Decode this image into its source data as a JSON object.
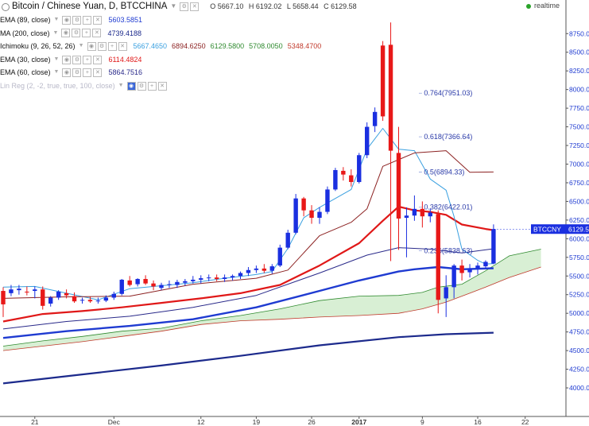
{
  "header": {
    "title": "Bitcoin / Chinese Yuan, D, BTCCHINA",
    "ohlc": {
      "open": "O 5667.10",
      "high": "H 6192.02",
      "low": "L 5658.44",
      "close": "C 6129.58"
    },
    "realtime": "realtime"
  },
  "legend": [
    {
      "name": "EMA (89, close)",
      "values": [
        "5603.5851"
      ],
      "colors": [
        "#1f3bd1"
      ]
    },
    {
      "name": "MA (200, close)",
      "values": [
        "4739.4188"
      ],
      "colors": [
        "#1c2a8c"
      ]
    },
    {
      "name": "Ichimoku (9, 26, 52, 26)",
      "values": [
        "5667.4650",
        "6894.6250",
        "6129.5800",
        "5708.0050",
        "5348.4700"
      ],
      "colors": [
        "#3aa0e0",
        "#8c2222",
        "#2f8a2f",
        "#2f8a2f",
        "#c0392b"
      ]
    },
    {
      "name": "EMA (30, close)",
      "values": [
        "6114.4824"
      ],
      "colors": [
        "#e01818"
      ]
    },
    {
      "name": "EMA (60, close)",
      "values": [
        "5864.7516"
      ],
      "colors": [
        "#2a2a8a"
      ]
    },
    {
      "name": "Lin Reg (2, -2, true, true, 100, close)",
      "values": [],
      "colors": [],
      "dimmed": true
    }
  ],
  "price_tag": "BTCCNY",
  "price_tag_value": "6129.58",
  "colors": {
    "up": "#1a2fe0",
    "down": "#e81818",
    "tag": "#1a2fe0"
  },
  "chart_data": {
    "type": "candlestick",
    "y_ticks": [
      "4000.00",
      "4250.00",
      "4500.00",
      "4750.00",
      "5000.00",
      "5250.00",
      "5500.00",
      "5750.00",
      "6000.00",
      "6250.00",
      "6500.00",
      "6750.00",
      "7000.00",
      "7250.00",
      "7500.00",
      "7750.00",
      "8000.00",
      "8250.00",
      "8500.00",
      "8750.00"
    ],
    "ylim": [
      3750,
      8950
    ],
    "x_ticks": [
      {
        "label": "21",
        "i": 4
      },
      {
        "label": "Dec",
        "i": 14
      },
      {
        "label": "12",
        "i": 25
      },
      {
        "label": "19",
        "i": 32
      },
      {
        "label": "26",
        "i": 39
      },
      {
        "label": "2017",
        "i": 45
      },
      {
        "label": "9",
        "i": 53
      },
      {
        "label": "16",
        "i": 60
      },
      {
        "label": "22",
        "i": 66
      }
    ],
    "candles": [
      [
        5300,
        5350,
        4950,
        5120
      ],
      [
        5270,
        5380,
        5230,
        5320
      ],
      [
        5310,
        5380,
        5250,
        5330
      ],
      [
        5290,
        5360,
        5240,
        5280
      ],
      [
        5300,
        5360,
        5200,
        5320
      ],
      [
        5320,
        5360,
        5050,
        5100
      ],
      [
        5130,
        5230,
        5090,
        5210
      ],
      [
        5210,
        5310,
        5180,
        5290
      ],
      [
        5270,
        5320,
        5200,
        5240
      ],
      [
        5230,
        5280,
        5140,
        5160
      ],
      [
        5170,
        5210,
        5130,
        5180
      ],
      [
        5180,
        5220,
        5140,
        5160
      ],
      [
        5160,
        5210,
        5130,
        5170
      ],
      [
        5170,
        5240,
        5150,
        5210
      ],
      [
        5210,
        5290,
        5180,
        5260
      ],
      [
        5260,
        5460,
        5240,
        5450
      ],
      [
        5440,
        5500,
        5360,
        5380
      ],
      [
        5390,
        5470,
        5360,
        5460
      ],
      [
        5460,
        5510,
        5380,
        5400
      ],
      [
        5400,
        5440,
        5310,
        5360
      ],
      [
        5340,
        5410,
        5310,
        5380
      ],
      [
        5380,
        5440,
        5340,
        5390
      ],
      [
        5380,
        5450,
        5340,
        5420
      ],
      [
        5410,
        5460,
        5370,
        5430
      ],
      [
        5430,
        5500,
        5400,
        5450
      ],
      [
        5450,
        5510,
        5400,
        5470
      ],
      [
        5470,
        5520,
        5430,
        5480
      ],
      [
        5480,
        5520,
        5430,
        5460
      ],
      [
        5460,
        5520,
        5420,
        5480
      ],
      [
        5480,
        5520,
        5440,
        5500
      ],
      [
        5500,
        5560,
        5460,
        5540
      ],
      [
        5540,
        5620,
        5500,
        5580
      ],
      [
        5580,
        5640,
        5540,
        5600
      ],
      [
        5600,
        5660,
        5540,
        5570
      ],
      [
        5570,
        5660,
        5530,
        5630
      ],
      [
        5640,
        5920,
        5620,
        5880
      ],
      [
        5880,
        6120,
        5860,
        6080
      ],
      [
        6080,
        6600,
        6060,
        6540
      ],
      [
        6540,
        6560,
        6300,
        6380
      ],
      [
        6380,
        6450,
        6200,
        6280
      ],
      [
        6280,
        6420,
        6200,
        6360
      ],
      [
        6360,
        6700,
        6330,
        6660
      ],
      [
        6660,
        6950,
        6640,
        6920
      ],
      [
        6910,
        6960,
        6780,
        6860
      ],
      [
        6850,
        6930,
        6700,
        6760
      ],
      [
        6760,
        7150,
        6740,
        7120
      ],
      [
        7120,
        7560,
        7080,
        7500
      ],
      [
        7510,
        7760,
        7430,
        7700
      ],
      [
        8590,
        8650,
        7580,
        7640
      ],
      [
        8600,
        8900,
        5700,
        7180
      ],
      [
        7150,
        7500,
        5850,
        6270
      ],
      [
        6280,
        6420,
        5750,
        6310
      ],
      [
        6310,
        6580,
        6240,
        6400
      ],
      [
        6400,
        6500,
        6150,
        6300
      ],
      [
        6300,
        6400,
        6220,
        6350
      ],
      [
        6330,
        6380,
        5000,
        5180
      ],
      [
        5200,
        5510,
        4950,
        5350
      ],
      [
        5350,
        5660,
        5200,
        5640
      ],
      [
        5640,
        5720,
        5440,
        5540
      ],
      [
        5550,
        5660,
        5480,
        5600
      ],
      [
        5600,
        5680,
        5520,
        5640
      ],
      [
        5630,
        5710,
        5590,
        5690
      ],
      [
        5667,
        6192,
        5658,
        6129
      ]
    ],
    "series": [
      {
        "name": "EMA (30, close)",
        "color": "#e01818",
        "width": 2.2,
        "points": [
          [
            0,
            4890
          ],
          [
            5,
            4990
          ],
          [
            10,
            5030
          ],
          [
            15,
            5080
          ],
          [
            20,
            5140
          ],
          [
            25,
            5200
          ],
          [
            30,
            5270
          ],
          [
            35,
            5380
          ],
          [
            40,
            5640
          ],
          [
            45,
            5940
          ],
          [
            48,
            6240
          ],
          [
            50,
            6430
          ],
          [
            52,
            6380
          ],
          [
            54,
            6360
          ],
          [
            56,
            6320
          ],
          [
            58,
            6190
          ],
          [
            61,
            6130
          ],
          [
            62,
            6114
          ]
        ]
      },
      {
        "name": "EMA (89, close)",
        "color": "#1f3bd1",
        "width": 2.4,
        "points": [
          [
            0,
            4670
          ],
          [
            8,
            4760
          ],
          [
            16,
            4830
          ],
          [
            24,
            4920
          ],
          [
            32,
            5080
          ],
          [
            40,
            5300
          ],
          [
            45,
            5440
          ],
          [
            50,
            5560
          ],
          [
            52,
            5590
          ],
          [
            55,
            5620
          ],
          [
            58,
            5590
          ],
          [
            62,
            5604
          ]
        ]
      },
      {
        "name": "MA (200, close)",
        "color": "#1c2a8c",
        "width": 2.2,
        "points": [
          [
            0,
            4060
          ],
          [
            10,
            4180
          ],
          [
            20,
            4300
          ],
          [
            30,
            4430
          ],
          [
            40,
            4570
          ],
          [
            50,
            4680
          ],
          [
            56,
            4720
          ],
          [
            62,
            4740
          ]
        ]
      },
      {
        "name": "EMA (60, close)",
        "color": "#2a2a8a",
        "width": 1,
        "points": [
          [
            0,
            4790
          ],
          [
            8,
            4890
          ],
          [
            16,
            4960
          ],
          [
            24,
            5080
          ],
          [
            32,
            5240
          ],
          [
            40,
            5540
          ],
          [
            46,
            5780
          ],
          [
            50,
            5880
          ],
          [
            54,
            5860
          ],
          [
            58,
            5810
          ],
          [
            62,
            5865
          ]
        ]
      },
      {
        "name": "Ichimoku conversion",
        "color": "#3aa0e0",
        "width": 1,
        "points": [
          [
            0,
            5350
          ],
          [
            4,
            5360
          ],
          [
            8,
            5270
          ],
          [
            12,
            5180
          ],
          [
            16,
            5330
          ],
          [
            20,
            5370
          ],
          [
            24,
            5410
          ],
          [
            28,
            5470
          ],
          [
            32,
            5520
          ],
          [
            34,
            5560
          ],
          [
            36,
            5870
          ],
          [
            38,
            6280
          ],
          [
            40,
            6420
          ],
          [
            42,
            6540
          ],
          [
            44,
            6660
          ],
          [
            46,
            7200
          ],
          [
            48,
            7480
          ],
          [
            50,
            7200
          ],
          [
            52,
            7180
          ],
          [
            54,
            6800
          ],
          [
            56,
            6650
          ],
          [
            57,
            6300
          ],
          [
            58,
            5860
          ],
          [
            60,
            5710
          ],
          [
            61,
            5660
          ],
          [
            62,
            5667
          ]
        ]
      },
      {
        "name": "Ichimoku base",
        "color": "#8c2222",
        "width": 1,
        "points": [
          [
            0,
            5200
          ],
          [
            8,
            5220
          ],
          [
            16,
            5230
          ],
          [
            24,
            5390
          ],
          [
            32,
            5470
          ],
          [
            36,
            5580
          ],
          [
            40,
            6040
          ],
          [
            44,
            6220
          ],
          [
            46,
            6400
          ],
          [
            48,
            6970
          ],
          [
            52,
            7150
          ],
          [
            56,
            7180
          ],
          [
            59,
            6890
          ],
          [
            62,
            6895
          ]
        ]
      }
    ],
    "span_a": [
      [
        0,
        4560
      ],
      [
        5,
        4630
      ],
      [
        10,
        4690
      ],
      [
        15,
        4760
      ],
      [
        20,
        4800
      ],
      [
        25,
        4900
      ],
      [
        30,
        4970
      ],
      [
        35,
        5060
      ],
      [
        40,
        5170
      ],
      [
        45,
        5230
      ],
      [
        50,
        5240
      ],
      [
        53,
        5280
      ],
      [
        55,
        5350
      ],
      [
        58,
        5390
      ],
      [
        61,
        5570
      ],
      [
        64,
        5770
      ],
      [
        68,
        5860
      ]
    ],
    "span_b": [
      [
        0,
        4500
      ],
      [
        5,
        4560
      ],
      [
        10,
        4620
      ],
      [
        15,
        4690
      ],
      [
        20,
        4760
      ],
      [
        25,
        4850
      ],
      [
        30,
        4900
      ],
      [
        35,
        4920
      ],
      [
        40,
        4950
      ],
      [
        45,
        4970
      ],
      [
        50,
        5000
      ],
      [
        53,
        5060
      ],
      [
        56,
        5150
      ],
      [
        59,
        5270
      ],
      [
        61,
        5350
      ],
      [
        64,
        5480
      ],
      [
        68,
        5620
      ]
    ],
    "fib": [
      {
        "label": "0.764(7951.03)",
        "price": 7951.03
      },
      {
        "label": "0.618(7366.64)",
        "price": 7366.64
      },
      {
        "label": "0.5(6894.33)",
        "price": 6894.33
      },
      {
        "label": "0.382(6422.01)",
        "price": 6422.01
      },
      {
        "label": "0.236(5838.63)",
        "price": 5838.63
      }
    ]
  }
}
